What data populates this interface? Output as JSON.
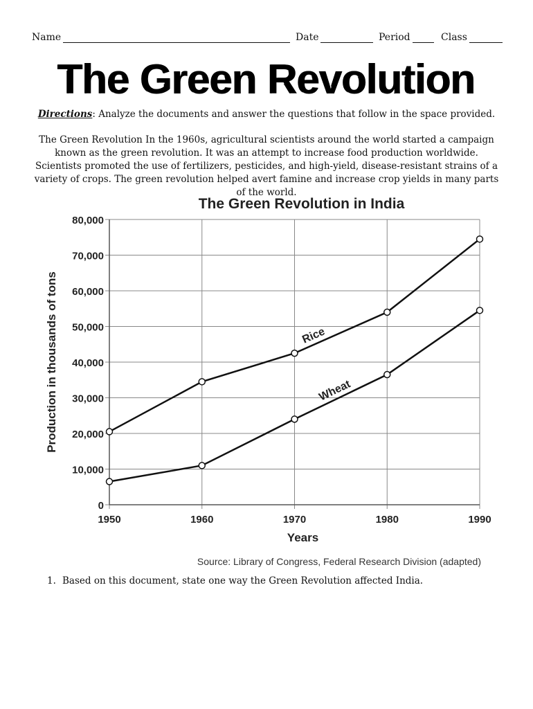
{
  "header": {
    "name_label": "Name",
    "date_label": "Date",
    "period_label": "Period",
    "class_label": "Class"
  },
  "title": "The Green Revolution",
  "directions": {
    "label": "Directions",
    "text": ": Analyze the documents and answer the questions that follow in the space provided."
  },
  "intro": "The Green Revolution In the 1960s, agricultural scientists around the world started a campaign known as the green revolution. It was an attempt to increase food production worldwide. Scientists promoted the use of fertilizers, pesticides, and high-yield, disease-resistant strains of a variety of crops. The green revolution helped avert famine and increase crop yields in many parts of the world.",
  "chart_data": {
    "type": "line",
    "title": "The Green Revolution in India",
    "xlabel": "Years",
    "ylabel": "Production in thousands of tons",
    "x": [
      1950,
      1960,
      1970,
      1980,
      1990
    ],
    "x_tick_labels": [
      "1950",
      "1960",
      "1970",
      "1980",
      "1990"
    ],
    "ylim": [
      0,
      80000
    ],
    "y_ticks": [
      0,
      10000,
      20000,
      30000,
      40000,
      50000,
      60000,
      70000,
      80000
    ],
    "y_tick_labels": [
      "0",
      "10,000",
      "20,000",
      "30,000",
      "40,000",
      "50,000",
      "60,000",
      "70,000",
      "80,000"
    ],
    "grid": true,
    "series": [
      {
        "name": "Rice",
        "values": [
          20500,
          34500,
          42500,
          54000,
          74500
        ]
      },
      {
        "name": "Wheat",
        "values": [
          6500,
          11000,
          24000,
          36500,
          54500
        ]
      }
    ],
    "source": "Source: Library of Congress, Federal Research Division (adapted)"
  },
  "questions": [
    {
      "number": "1.",
      "text": "Based on this document, state one way the Green Revolution affected India."
    }
  ]
}
